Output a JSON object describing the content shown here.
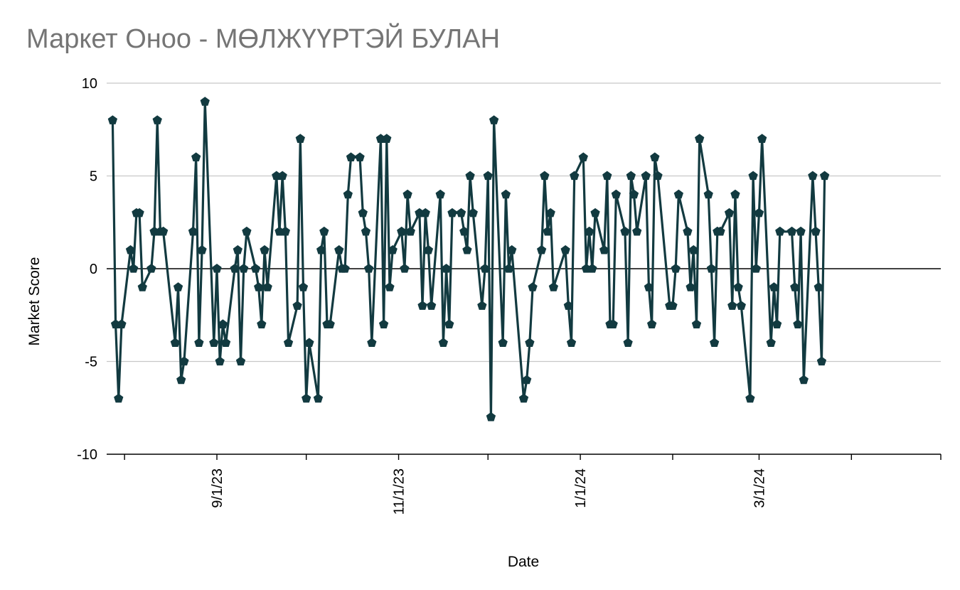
{
  "chart_data": {
    "type": "line",
    "title": "Маркет Оноо - МӨЛЖҮҮРТЭЙ БУЛАН",
    "xlabel": "Date",
    "ylabel": "Market Score",
    "ylim": [
      -10,
      10
    ],
    "yticks": [
      10,
      5,
      0,
      -5,
      -10
    ],
    "ytick_labels": [
      "10",
      "5",
      "0",
      "-5",
      "-10"
    ],
    "xlim": [
      "2023-07-26",
      "2024-05-01"
    ],
    "xtick_labels": [
      {
        "date": "2023-09-01",
        "label": "9/1/23"
      },
      {
        "date": "2023-11-01",
        "label": "11/1/23"
      },
      {
        "date": "2024-01-01",
        "label": "1/1/24"
      },
      {
        "date": "2024-03-01",
        "label": "3/1/24"
      }
    ],
    "grid": true,
    "legend": "none",
    "line_color": "#123a40",
    "marker": "pentagon",
    "series": [
      {
        "points": [
          [
            "2023-07-28",
            8
          ],
          [
            "2023-07-29",
            -3
          ],
          [
            "2023-07-30",
            -7
          ],
          [
            "2023-07-31",
            -3
          ],
          [
            "2023-08-03",
            1
          ],
          [
            "2023-08-04",
            0
          ],
          [
            "2023-08-05",
            3
          ],
          [
            "2023-08-06",
            3
          ],
          [
            "2023-08-07",
            -1
          ],
          [
            "2023-08-10",
            0
          ],
          [
            "2023-08-11",
            2
          ],
          [
            "2023-08-12",
            8
          ],
          [
            "2023-08-13",
            2
          ],
          [
            "2023-08-14",
            2
          ],
          [
            "2023-08-18",
            -4
          ],
          [
            "2023-08-19",
            -1
          ],
          [
            "2023-08-20",
            -6
          ],
          [
            "2023-08-21",
            -5
          ],
          [
            "2023-08-24",
            2
          ],
          [
            "2023-08-25",
            6
          ],
          [
            "2023-08-26",
            -4
          ],
          [
            "2023-08-27",
            1
          ],
          [
            "2023-08-28",
            9
          ],
          [
            "2023-08-31",
            -4
          ],
          [
            "2023-09-01",
            0
          ],
          [
            "2023-09-02",
            -5
          ],
          [
            "2023-09-03",
            -3
          ],
          [
            "2023-09-04",
            -4
          ],
          [
            "2023-09-07",
            0
          ],
          [
            "2023-09-08",
            1
          ],
          [
            "2023-09-09",
            -5
          ],
          [
            "2023-09-10",
            0
          ],
          [
            "2023-09-11",
            2
          ],
          [
            "2023-09-14",
            0
          ],
          [
            "2023-09-15",
            -1
          ],
          [
            "2023-09-16",
            -3
          ],
          [
            "2023-09-17",
            1
          ],
          [
            "2023-09-18",
            -1
          ],
          [
            "2023-09-21",
            5
          ],
          [
            "2023-09-22",
            2
          ],
          [
            "2023-09-23",
            5
          ],
          [
            "2023-09-24",
            2
          ],
          [
            "2023-09-25",
            -4
          ],
          [
            "2023-09-28",
            -2
          ],
          [
            "2023-09-29",
            7
          ],
          [
            "2023-09-30",
            -1
          ],
          [
            "2023-10-01",
            -7
          ],
          [
            "2023-10-02",
            -4
          ],
          [
            "2023-10-05",
            -7
          ],
          [
            "2023-10-06",
            1
          ],
          [
            "2023-10-07",
            2
          ],
          [
            "2023-10-08",
            -3
          ],
          [
            "2023-10-09",
            -3
          ],
          [
            "2023-10-12",
            1
          ],
          [
            "2023-10-13",
            0
          ],
          [
            "2023-10-14",
            0
          ],
          [
            "2023-10-15",
            4
          ],
          [
            "2023-10-16",
            6
          ],
          [
            "2023-10-19",
            6
          ],
          [
            "2023-10-20",
            3
          ],
          [
            "2023-10-21",
            2
          ],
          [
            "2023-10-22",
            0
          ],
          [
            "2023-10-23",
            -4
          ],
          [
            "2023-10-26",
            7
          ],
          [
            "2023-10-27",
            -3
          ],
          [
            "2023-10-28",
            7
          ],
          [
            "2023-10-29",
            -1
          ],
          [
            "2023-10-30",
            1
          ],
          [
            "2023-11-02",
            2
          ],
          [
            "2023-11-03",
            0
          ],
          [
            "2023-11-04",
            4
          ],
          [
            "2023-11-05",
            2
          ],
          [
            "2023-11-08",
            3
          ],
          [
            "2023-11-09",
            -2
          ],
          [
            "2023-11-10",
            3
          ],
          [
            "2023-11-11",
            1
          ],
          [
            "2023-11-12",
            -2
          ],
          [
            "2023-11-15",
            4
          ],
          [
            "2023-11-16",
            -4
          ],
          [
            "2023-11-17",
            0
          ],
          [
            "2023-11-18",
            -3
          ],
          [
            "2023-11-19",
            3
          ],
          [
            "2023-11-22",
            3
          ],
          [
            "2023-11-23",
            2
          ],
          [
            "2023-11-24",
            1
          ],
          [
            "2023-11-25",
            5
          ],
          [
            "2023-11-26",
            3
          ],
          [
            "2023-11-29",
            -2
          ],
          [
            "2023-11-30",
            0
          ],
          [
            "2023-12-01",
            5
          ],
          [
            "2023-12-02",
            -8
          ],
          [
            "2023-12-03",
            8
          ],
          [
            "2023-12-06",
            -4
          ],
          [
            "2023-12-07",
            4
          ],
          [
            "2023-12-08",
            0
          ],
          [
            "2023-12-09",
            1
          ],
          [
            "2023-12-13",
            -7
          ],
          [
            "2023-12-14",
            -6
          ],
          [
            "2023-12-15",
            -4
          ],
          [
            "2023-12-16",
            -1
          ],
          [
            "2023-12-19",
            1
          ],
          [
            "2023-12-20",
            5
          ],
          [
            "2023-12-21",
            2
          ],
          [
            "2023-12-22",
            3
          ],
          [
            "2023-12-23",
            -1
          ],
          [
            "2023-12-27",
            1
          ],
          [
            "2023-12-28",
            -2
          ],
          [
            "2023-12-29",
            -4
          ],
          [
            "2023-12-30",
            5
          ],
          [
            "2024-01-02",
            6
          ],
          [
            "2024-01-03",
            0
          ],
          [
            "2024-01-04",
            2
          ],
          [
            "2024-01-05",
            0
          ],
          [
            "2024-01-06",
            3
          ],
          [
            "2024-01-09",
            1
          ],
          [
            "2024-01-10",
            5
          ],
          [
            "2024-01-11",
            -3
          ],
          [
            "2024-01-12",
            -3
          ],
          [
            "2024-01-13",
            4
          ],
          [
            "2024-01-16",
            2
          ],
          [
            "2024-01-17",
            -4
          ],
          [
            "2024-01-18",
            5
          ],
          [
            "2024-01-19",
            4
          ],
          [
            "2024-01-20",
            2
          ],
          [
            "2024-01-23",
            5
          ],
          [
            "2024-01-24",
            -1
          ],
          [
            "2024-01-25",
            -3
          ],
          [
            "2024-01-26",
            6
          ],
          [
            "2024-01-27",
            5
          ],
          [
            "2024-01-31",
            -2
          ],
          [
            "2024-02-01",
            -2
          ],
          [
            "2024-02-02",
            0
          ],
          [
            "2024-02-03",
            4
          ],
          [
            "2024-02-06",
            2
          ],
          [
            "2024-02-07",
            -1
          ],
          [
            "2024-02-08",
            1
          ],
          [
            "2024-02-09",
            -3
          ],
          [
            "2024-02-10",
            7
          ],
          [
            "2024-02-13",
            4
          ],
          [
            "2024-02-14",
            0
          ],
          [
            "2024-02-15",
            -4
          ],
          [
            "2024-02-16",
            2
          ],
          [
            "2024-02-17",
            2
          ],
          [
            "2024-02-20",
            3
          ],
          [
            "2024-02-21",
            -2
          ],
          [
            "2024-02-22",
            4
          ],
          [
            "2024-02-23",
            -1
          ],
          [
            "2024-02-24",
            -2
          ],
          [
            "2024-02-27",
            -7
          ],
          [
            "2024-02-28",
            5
          ],
          [
            "2024-02-29",
            0
          ],
          [
            "2024-03-01",
            3
          ],
          [
            "2024-03-02",
            7
          ],
          [
            "2024-03-05",
            -4
          ],
          [
            "2024-03-06",
            -1
          ],
          [
            "2024-03-07",
            -3
          ],
          [
            "2024-03-08",
            2
          ],
          [
            "2024-03-12",
            2
          ],
          [
            "2024-03-13",
            -1
          ],
          [
            "2024-03-14",
            -3
          ],
          [
            "2024-03-15",
            2
          ],
          [
            "2024-03-16",
            -6
          ],
          [
            "2024-03-19",
            5
          ],
          [
            "2024-03-20",
            2
          ],
          [
            "2024-03-21",
            -1
          ],
          [
            "2024-03-22",
            -5
          ],
          [
            "2024-03-23",
            5
          ]
        ]
      }
    ]
  }
}
